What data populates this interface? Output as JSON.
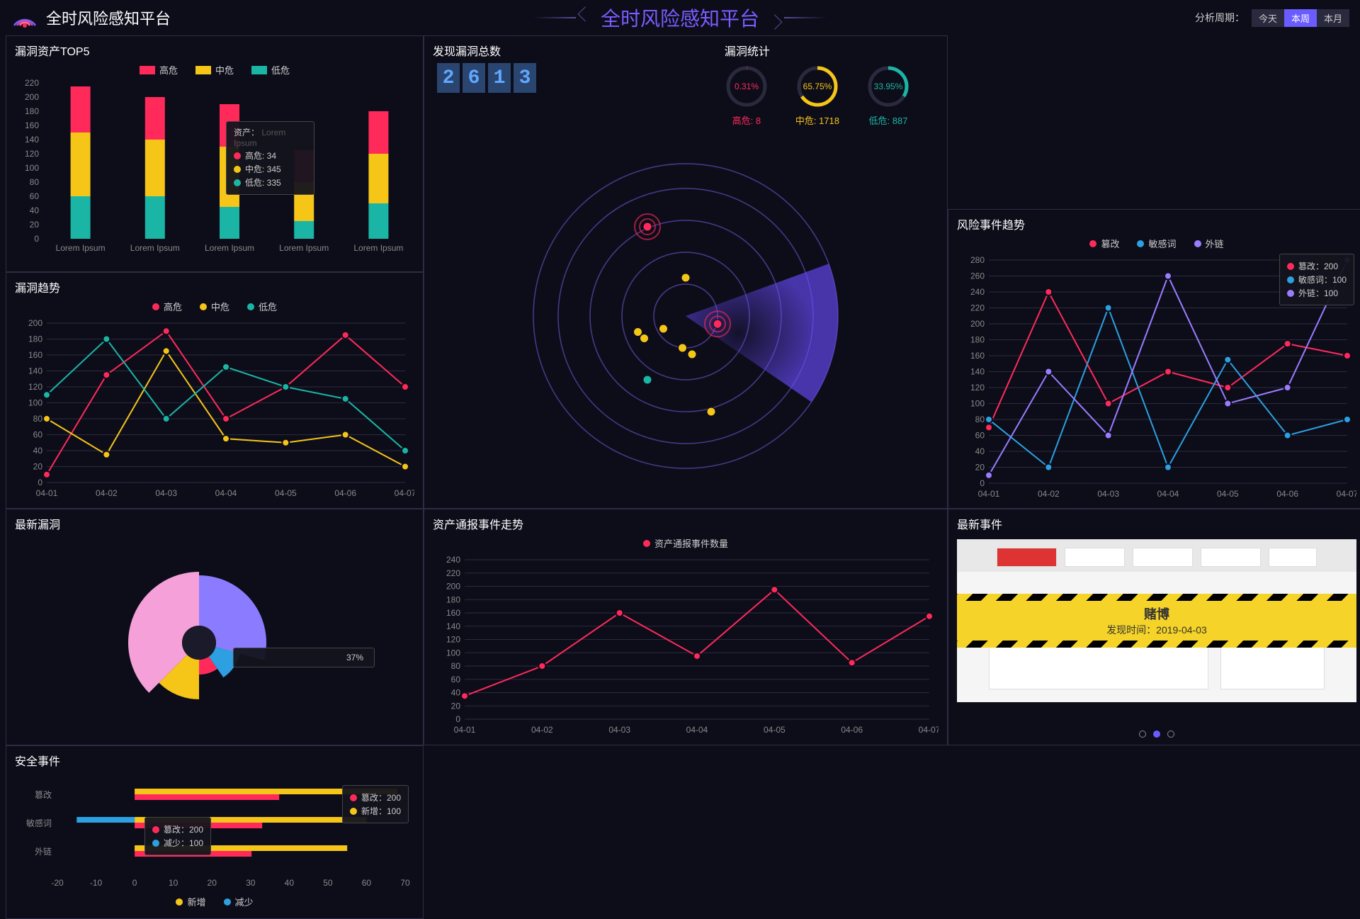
{
  "header": {
    "title_left": "全时风险感知平台",
    "title_center": "全时风险感知平台",
    "period_label": "分析周期：",
    "periods": [
      "今天",
      "本周",
      "本月"
    ],
    "active_period": 1
  },
  "colors": {
    "high": "#ff2a5a",
    "mid": "#f5c518",
    "low": "#1bb5a5",
    "purple": "#8b7cff",
    "pink": "#f5a0d8",
    "blue": "#2ca0e0",
    "violet": "#9b7cff"
  },
  "top5": {
    "title": "漏洞资产TOP5",
    "legend": [
      {
        "label": "高危",
        "color": "#ff2a5a"
      },
      {
        "label": "中危",
        "color": "#f5c518"
      },
      {
        "label": "低危",
        "color": "#1bb5a5"
      }
    ],
    "ylim": [
      0,
      220
    ],
    "ytick": 20,
    "categories": [
      "Lorem Ipsum",
      "Lorem Ipsum",
      "Lorem Ipsum",
      "Lorem Ipsum",
      "Lorem Ipsum"
    ],
    "stacks": [
      {
        "low": 60,
        "mid": 90,
        "high": 65
      },
      {
        "low": 60,
        "mid": 80,
        "high": 60
      },
      {
        "low": 45,
        "mid": 85,
        "high": 60
      },
      {
        "low": 25,
        "mid": 55,
        "high": 45
      },
      {
        "low": 50,
        "mid": 70,
        "high": 60
      }
    ],
    "tooltip": {
      "asset_label": "资产：",
      "rows": [
        {
          "name": "高危",
          "val": "34",
          "color": "#ff2a5a"
        },
        {
          "name": "中危",
          "val": "345",
          "color": "#f5c518"
        },
        {
          "name": "低危",
          "val": "335",
          "color": "#1bb5a5"
        }
      ]
    }
  },
  "trend": {
    "title": "漏洞趋势",
    "legend": [
      {
        "label": "高危",
        "color": "#ff2a5a"
      },
      {
        "label": "中危",
        "color": "#f5c518"
      },
      {
        "label": "低危",
        "color": "#1bb5a5"
      }
    ],
    "ylim": [
      0,
      200
    ],
    "ytick": 20,
    "xlabels": [
      "04-01",
      "04-02",
      "04-03",
      "04-04",
      "04-05",
      "04-06",
      "04-07"
    ],
    "series": {
      "high": [
        10,
        135,
        190,
        80,
        120,
        185,
        120
      ],
      "mid": [
        80,
        35,
        165,
        55,
        50,
        60,
        20
      ],
      "low": [
        110,
        180,
        80,
        145,
        120,
        105,
        40
      ]
    }
  },
  "latest_vuln": {
    "title": "最新漏洞",
    "slices": [
      {
        "start": -90,
        "end": 15,
        "r": 95,
        "color": "#8b7cff"
      },
      {
        "start": 15,
        "end": 55,
        "r": 60,
        "color": "#2ca0e0"
      },
      {
        "start": 55,
        "end": 90,
        "r": 45,
        "color": "#ff2a5a"
      },
      {
        "start": 90,
        "end": 135,
        "r": 80,
        "color": "#f5c518"
      },
      {
        "start": 135,
        "end": 270,
        "r": 100,
        "color": "#f5a0d8"
      }
    ],
    "tooltip_text": "37%"
  },
  "radar": {
    "total_title": "发现漏洞总数",
    "stats_title": "漏洞统计",
    "digits": [
      "2",
      "6",
      "1",
      "3"
    ],
    "rings": [
      {
        "pct": "0.31%",
        "count_label": "高危: 8",
        "color": "#ff2a5a"
      },
      {
        "pct": "65.75%",
        "count_label": "中危: 1718",
        "color": "#f5c518"
      },
      {
        "pct": "33.95%",
        "count_label": "低危: 887",
        "color": "#1bb5a5"
      }
    ],
    "points": [
      {
        "x": 0.38,
        "y": 0.22,
        "color": "#ff2a5a",
        "pulse": true
      },
      {
        "x": 0.5,
        "y": 0.38,
        "color": "#f5c518"
      },
      {
        "x": 0.43,
        "y": 0.54,
        "color": "#f5c518"
      },
      {
        "x": 0.35,
        "y": 0.55,
        "color": "#f5c518"
      },
      {
        "x": 0.37,
        "y": 0.57,
        "color": "#f5c518"
      },
      {
        "x": 0.49,
        "y": 0.6,
        "color": "#f5c518"
      },
      {
        "x": 0.52,
        "y": 0.62,
        "color": "#f5c518"
      },
      {
        "x": 0.6,
        "y": 0.525,
        "color": "#ff2a5a",
        "pulse": true
      },
      {
        "x": 0.38,
        "y": 0.7,
        "color": "#1bb5a5"
      },
      {
        "x": 0.58,
        "y": 0.8,
        "color": "#f5c518"
      }
    ]
  },
  "asset_trend": {
    "title": "资产通报事件走势",
    "legend_label": "资产通报事件数量",
    "ylim": [
      0,
      240
    ],
    "ytick": 20,
    "xlabels": [
      "04-01",
      "04-02",
      "04-03",
      "04-04",
      "04-05",
      "04-06",
      "04-07"
    ],
    "values": [
      35,
      80,
      160,
      95,
      195,
      85,
      155
    ]
  },
  "security_events": {
    "title": "安全事件",
    "legend": [
      {
        "label": "新增",
        "color": "#f5c518"
      },
      {
        "label": "减少",
        "color": "#2ca0e0"
      }
    ],
    "xlim": [
      -20,
      70
    ],
    "xtick": 10,
    "categories": [
      "篡改",
      "敏感词",
      "外链"
    ],
    "bars": [
      {
        "add": 68,
        "reduce": 0
      },
      {
        "add": 60,
        "reduce": -15
      },
      {
        "add": 55,
        "reduce": 0
      }
    ],
    "tooltip1": {
      "rows": [
        {
          "name": "篡改：200",
          "color": "#ff2a5a"
        },
        {
          "name": "新增：100",
          "color": "#f5c518"
        }
      ]
    },
    "tooltip2": {
      "rows": [
        {
          "name": "篡改：200",
          "color": "#ff2a5a"
        },
        {
          "name": "减少：100",
          "color": "#2ca0e0"
        }
      ]
    }
  },
  "risk_trend": {
    "title": "风险事件趋势",
    "legend": [
      {
        "label": "篡改",
        "color": "#ff2a5a"
      },
      {
        "label": "敏感词",
        "color": "#2ca0e0"
      },
      {
        "label": "外链",
        "color": "#9b7cff"
      }
    ],
    "ylim": [
      0,
      280
    ],
    "ytick": 20,
    "xlabels": [
      "04-01",
      "04-02",
      "04-03",
      "04-04",
      "04-05",
      "04-06",
      "04-07"
    ],
    "series": {
      "tamper": [
        70,
        240,
        100,
        140,
        120,
        175,
        160
      ],
      "sensitive": [
        80,
        20,
        220,
        20,
        155,
        60,
        80
      ],
      "external": [
        10,
        140,
        60,
        260,
        100,
        120,
        280
      ]
    },
    "tooltip": {
      "rows": [
        {
          "name": "篡改：200",
          "color": "#ff2a5a"
        },
        {
          "name": "敏感词：100",
          "color": "#2ca0e0"
        },
        {
          "name": "外链：100",
          "color": "#9b7cff"
        }
      ]
    }
  },
  "latest_event": {
    "title": "最新事件",
    "badge_title": "赌博",
    "badge_sub": "发现时间：2019-04-03"
  }
}
